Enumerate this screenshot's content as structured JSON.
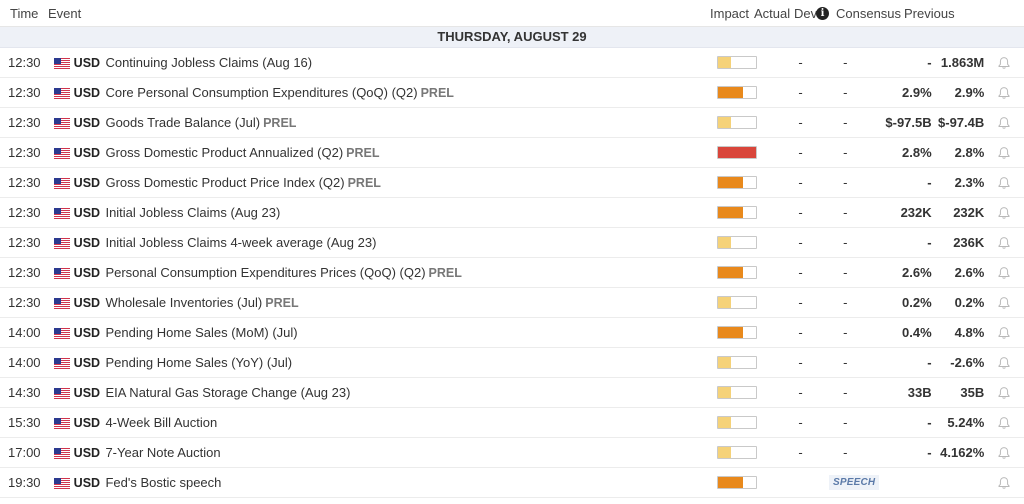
{
  "header": {
    "time": "Time",
    "event": "Event",
    "impact": "Impact",
    "actual": "Actual",
    "dev": "Dev",
    "info_icon": "i",
    "consensus": "Consensus",
    "previous": "Previous"
  },
  "date_label": "THURSDAY, AUGUST 29",
  "colors": {
    "low": "#f5d279",
    "medium": "#e8891c",
    "high": "#d9463b"
  },
  "rows": [
    {
      "time": "12:30",
      "currency": "USD",
      "event": "Continuing Jobless Claims (Aug 16)",
      "tag": "",
      "impact_level": 0.33,
      "impact": "low",
      "actual": "-",
      "dev": "-",
      "consensus": "-",
      "previous": "1.863M",
      "speech": ""
    },
    {
      "time": "12:30",
      "currency": "USD",
      "event": "Core Personal Consumption Expenditures (QoQ) (Q2)",
      "tag": "PREL",
      "impact_level": 0.66,
      "impact": "medium",
      "actual": "-",
      "dev": "-",
      "consensus": "2.9%",
      "previous": "2.9%",
      "speech": ""
    },
    {
      "time": "12:30",
      "currency": "USD",
      "event": "Goods Trade Balance (Jul)",
      "tag": "PREL",
      "impact_level": 0.33,
      "impact": "low",
      "actual": "-",
      "dev": "-",
      "consensus": "$-97.5B",
      "previous": "$-97.4B",
      "speech": ""
    },
    {
      "time": "12:30",
      "currency": "USD",
      "event": "Gross Domestic Product Annualized (Q2)",
      "tag": "PREL",
      "impact_level": 1.0,
      "impact": "high",
      "actual": "-",
      "dev": "-",
      "consensus": "2.8%",
      "previous": "2.8%",
      "speech": ""
    },
    {
      "time": "12:30",
      "currency": "USD",
      "event": "Gross Domestic Product Price Index (Q2)",
      "tag": "PREL",
      "impact_level": 0.66,
      "impact": "medium",
      "actual": "-",
      "dev": "-",
      "consensus": "-",
      "previous": "2.3%",
      "speech": ""
    },
    {
      "time": "12:30",
      "currency": "USD",
      "event": "Initial Jobless Claims (Aug 23)",
      "tag": "",
      "impact_level": 0.66,
      "impact": "medium",
      "actual": "-",
      "dev": "-",
      "consensus": "232K",
      "previous": "232K",
      "speech": ""
    },
    {
      "time": "12:30",
      "currency": "USD",
      "event": "Initial Jobless Claims 4-week average (Aug 23)",
      "tag": "",
      "impact_level": 0.33,
      "impact": "low",
      "actual": "-",
      "dev": "-",
      "consensus": "-",
      "previous": "236K",
      "speech": ""
    },
    {
      "time": "12:30",
      "currency": "USD",
      "event": "Personal Consumption Expenditures Prices (QoQ) (Q2)",
      "tag": "PREL",
      "impact_level": 0.66,
      "impact": "medium",
      "actual": "-",
      "dev": "-",
      "consensus": "2.6%",
      "previous": "2.6%",
      "speech": ""
    },
    {
      "time": "12:30",
      "currency": "USD",
      "event": "Wholesale Inventories (Jul)",
      "tag": "PREL",
      "impact_level": 0.33,
      "impact": "low",
      "actual": "-",
      "dev": "-",
      "consensus": "0.2%",
      "previous": "0.2%",
      "speech": ""
    },
    {
      "time": "14:00",
      "currency": "USD",
      "event": "Pending Home Sales (MoM) (Jul)",
      "tag": "",
      "impact_level": 0.66,
      "impact": "medium",
      "actual": "-",
      "dev": "-",
      "consensus": "0.4%",
      "previous": "4.8%",
      "speech": ""
    },
    {
      "time": "14:00",
      "currency": "USD",
      "event": "Pending Home Sales (YoY) (Jul)",
      "tag": "",
      "impact_level": 0.33,
      "impact": "low",
      "actual": "-",
      "dev": "-",
      "consensus": "-",
      "previous": "-2.6%",
      "speech": ""
    },
    {
      "time": "14:30",
      "currency": "USD",
      "event": "EIA Natural Gas Storage Change (Aug 23)",
      "tag": "",
      "impact_level": 0.33,
      "impact": "low",
      "actual": "-",
      "dev": "-",
      "consensus": "33B",
      "previous": "35B",
      "speech": ""
    },
    {
      "time": "15:30",
      "currency": "USD",
      "event": "4-Week Bill Auction",
      "tag": "",
      "impact_level": 0.33,
      "impact": "low",
      "actual": "-",
      "dev": "-",
      "consensus": "-",
      "previous": "5.24%",
      "speech": ""
    },
    {
      "time": "17:00",
      "currency": "USD",
      "event": "7-Year Note Auction",
      "tag": "",
      "impact_level": 0.33,
      "impact": "low",
      "actual": "-",
      "dev": "-",
      "consensus": "-",
      "previous": "4.162%",
      "speech": ""
    },
    {
      "time": "19:30",
      "currency": "USD",
      "event": "Fed's Bostic speech",
      "tag": "",
      "impact_level": 0.66,
      "impact": "medium",
      "actual": "",
      "dev": "",
      "consensus": "",
      "previous": "",
      "speech": "SPEECH"
    }
  ]
}
